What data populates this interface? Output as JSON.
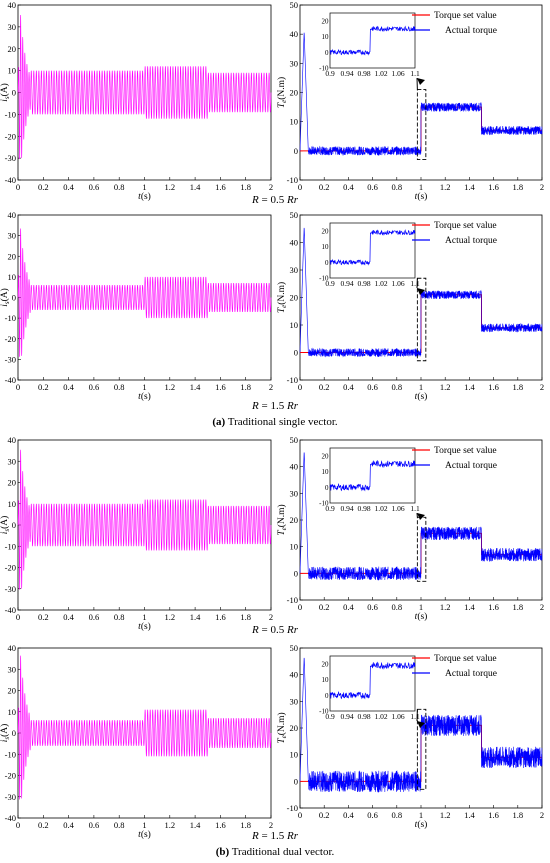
{
  "captions": {
    "r1": {
      "pre": "R",
      "mid": " = 0.5 ",
      "post": "Rr"
    },
    "r2": {
      "pre": "R",
      "mid": " = 1.5 ",
      "post": "Rr"
    },
    "a": {
      "tag": "(a)",
      "text": " Traditional single vector."
    },
    "r3": {
      "pre": "R",
      "mid": " = 0.5 ",
      "post": "Rr"
    },
    "r4": {
      "pre": "R",
      "mid": " = 1.5 ",
      "post": "Rr"
    },
    "b": {
      "tag": "(b)",
      "text": " Traditional dual vector."
    }
  },
  "colors": {
    "current": "#ff00ff",
    "torque": "#0000ff",
    "setvalue": "#ff0000"
  },
  "chart_data": [
    {
      "id": "c1",
      "type": "line",
      "xlabel": "t(s)",
      "ylabel": "i_s(A)",
      "xlim": [
        0,
        2
      ],
      "ylim": [
        -40,
        40
      ],
      "xticks": [
        "0",
        "0.2",
        "0.4",
        "0.6",
        "0.8",
        "1",
        "1.2",
        "1.4",
        "1.6",
        "1.8",
        "2"
      ],
      "yticks": [
        "-40",
        "-30",
        "-20",
        "-10",
        "0",
        "10",
        "20",
        "30",
        "40"
      ],
      "startup_peak": 36,
      "amplitude": [
        [
          0.1,
          10
        ],
        [
          1.0,
          12
        ],
        [
          1.5,
          9
        ]
      ]
    },
    {
      "id": "t1",
      "type": "line",
      "xlabel": "t(s)",
      "ylabel": "T_e(N.m)",
      "xlim": [
        0,
        2
      ],
      "ylim": [
        -10,
        50
      ],
      "xticks": [
        "0",
        "0.2",
        "0.4",
        "0.6",
        "0.8",
        "1",
        "1.2",
        "1.4",
        "1.6",
        "1.8",
        "2"
      ],
      "yticks": [
        "-10",
        "0",
        "10",
        "20",
        "30",
        "40",
        "50"
      ],
      "legend": [
        "Torque  set  value",
        "Actual   torque"
      ],
      "series": [
        {
          "name": "Torque  set  value",
          "x": [
            0,
            1,
            1,
            1.5,
            1.5,
            2
          ],
          "y": [
            0,
            0,
            15,
            15,
            7,
            7
          ]
        },
        {
          "name": "Actual   torque",
          "peak": 42,
          "ripple": 1.5
        }
      ],
      "inset": {
        "xticks": [
          "0.9",
          "0.94",
          "0.98",
          "1.02",
          "1.06",
          "1.1"
        ],
        "yticks": [
          "-10",
          "0",
          "10",
          "20"
        ],
        "ylim": [
          -10,
          25
        ],
        "xlim": [
          0.9,
          1.1
        ]
      }
    },
    {
      "id": "c2",
      "type": "line",
      "xlabel": "t(s)",
      "ylabel": "i_s(A)",
      "xlim": [
        0,
        2
      ],
      "ylim": [
        -40,
        40
      ],
      "xticks": [
        "0",
        "0.2",
        "0.4",
        "0.6",
        "0.8",
        "1",
        "1.2",
        "1.4",
        "1.6",
        "1.8",
        "2"
      ],
      "yticks": [
        "-40",
        "-30",
        "-20",
        "-10",
        "0",
        "10",
        "20",
        "30",
        "40"
      ],
      "startup_peak": 34,
      "amplitude": [
        [
          0.1,
          6
        ],
        [
          1.0,
          10
        ],
        [
          1.5,
          7
        ]
      ]
    },
    {
      "id": "t2",
      "type": "line",
      "xlabel": "t(s)",
      "ylabel": "T_e(N.m)",
      "xlim": [
        0,
        2
      ],
      "ylim": [
        -10,
        50
      ],
      "xticks": [
        "0",
        "0.2",
        "0.4",
        "0.6",
        "0.8",
        "1",
        "1.2",
        "1.4",
        "1.6",
        "1.8",
        "2"
      ],
      "yticks": [
        "-10",
        "0",
        "10",
        "20",
        "30",
        "40",
        "50"
      ],
      "legend": [
        "Torque  set  value",
        "Actual   torque"
      ],
      "series": [
        {
          "name": "Torque  set  value",
          "x": [
            0,
            1,
            1,
            1.5,
            1.5,
            2
          ],
          "y": [
            0,
            0,
            21,
            21,
            9,
            9
          ]
        },
        {
          "name": "Actual   torque",
          "peak": 47,
          "ripple": 1.5
        }
      ],
      "inset": {
        "xticks": [
          "0.9",
          "0.94",
          "0.98",
          "1.02",
          "1.06",
          "1.1"
        ],
        "yticks": [
          "-10",
          "0",
          "10",
          "20"
        ],
        "ylim": [
          -10,
          25
        ],
        "xlim": [
          0.9,
          1.1
        ]
      }
    },
    {
      "id": "c3",
      "type": "line",
      "xlabel": "t(s)",
      "ylabel": "i_s(A)",
      "xlim": [
        0,
        2
      ],
      "ylim": [
        -40,
        40
      ],
      "xticks": [
        "0",
        "0.2",
        "0.4",
        "0.6",
        "0.8",
        "1",
        "1.2",
        "1.4",
        "1.6",
        "1.8",
        "2"
      ],
      "yticks": [
        "-40",
        "-30",
        "-20",
        "-10",
        "0",
        "10",
        "20",
        "30",
        "40"
      ],
      "startup_peak": 36,
      "amplitude": [
        [
          0.1,
          10
        ],
        [
          1.0,
          12
        ],
        [
          1.5,
          9
        ]
      ]
    },
    {
      "id": "t3",
      "type": "line",
      "xlabel": "t(s)",
      "ylabel": "T_e(N.m)",
      "xlim": [
        0,
        2
      ],
      "ylim": [
        -10,
        50
      ],
      "xticks": [
        "0",
        "0.2",
        "0.4",
        "0.6",
        "0.8",
        "1",
        "1.2",
        "1.4",
        "1.6",
        "1.8",
        "2"
      ],
      "yticks": [
        "-10",
        "0",
        "10",
        "20",
        "30",
        "40",
        "50"
      ],
      "legend": [
        "Torque  set  value",
        "Actual   torque"
      ],
      "series": [
        {
          "name": "Torque  set  value",
          "x": [
            0,
            1,
            1,
            1.5,
            1.5,
            2
          ],
          "y": [
            0,
            0,
            15,
            15,
            7,
            7
          ]
        },
        {
          "name": "Actual   torque",
          "peak": 47,
          "ripple": 2.5
        }
      ],
      "inset": {
        "xticks": [
          "0.9",
          "0.94",
          "0.98",
          "1.02",
          "1.06",
          "1.1"
        ],
        "yticks": [
          "-10",
          "0",
          "10",
          "20"
        ],
        "ylim": [
          -10,
          25
        ],
        "xlim": [
          0.9,
          1.1
        ]
      }
    },
    {
      "id": "c4",
      "type": "line",
      "xlabel": "t(s)",
      "ylabel": "i_s(A)",
      "xlim": [
        0,
        2
      ],
      "ylim": [
        -40,
        40
      ],
      "xticks": [
        "0",
        "0.2",
        "0.4",
        "0.6",
        "0.8",
        "1",
        "1.2",
        "1.4",
        "1.6",
        "1.8",
        "2"
      ],
      "yticks": [
        "-40",
        "-30",
        "-20",
        "-10",
        "0",
        "10",
        "20",
        "30",
        "40"
      ],
      "startup_peak": 37,
      "amplitude": [
        [
          0.1,
          6
        ],
        [
          1.0,
          11
        ],
        [
          1.5,
          7
        ]
      ]
    },
    {
      "id": "t4",
      "type": "line",
      "xlabel": "t(s)",
      "ylabel": "T_e(N.m)",
      "xlim": [
        0,
        2
      ],
      "ylim": [
        -10,
        50
      ],
      "xticks": [
        "0",
        "0.2",
        "0.4",
        "0.6",
        "0.8",
        "1",
        "1.2",
        "1.4",
        "1.6",
        "1.8",
        "2"
      ],
      "yticks": [
        "-10",
        "0",
        "10",
        "20",
        "30",
        "40",
        "50"
      ],
      "legend": [
        "Torque  set  value",
        "Actual   torque"
      ],
      "series": [
        {
          "name": "Torque  set  value",
          "x": [
            0,
            1,
            1,
            1.5,
            1.5,
            2
          ],
          "y": [
            0,
            0,
            21,
            21,
            9,
            9
          ]
        },
        {
          "name": "Actual   torque",
          "peak": 48,
          "ripple": 4
        }
      ],
      "inset": {
        "xticks": [
          "0.9",
          "0.94",
          "0.98",
          "1.02",
          "1.06",
          "1.1"
        ],
        "yticks": [
          "-10",
          "0",
          "10",
          "20"
        ],
        "ylim": [
          -10,
          25
        ],
        "xlim": [
          0.9,
          1.1
        ]
      }
    }
  ]
}
